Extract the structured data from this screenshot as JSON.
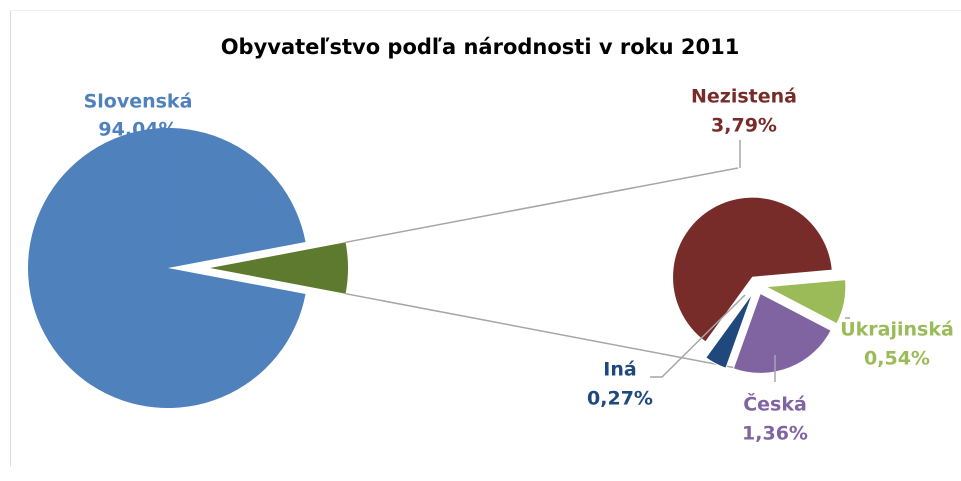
{
  "chart_data": {
    "type": "pie",
    "title": "Obyvateľstvo podľa národnosti v roku 2011",
    "categories": [
      "Slovenská",
      "Nezistená",
      "Ukrajinská",
      "Česká",
      "Iná"
    ],
    "values": [
      94.04,
      3.79,
      0.54,
      1.36,
      0.27
    ],
    "value_labels": [
      "94,04%",
      "3,79%",
      "0,54%",
      "1,36%",
      "0,27%"
    ],
    "colors": [
      "#4f81bd",
      "#772c2a",
      "#9bbb59",
      "#8064a2",
      "#1f497d"
    ],
    "other_color": "#5e7a2e"
  }
}
